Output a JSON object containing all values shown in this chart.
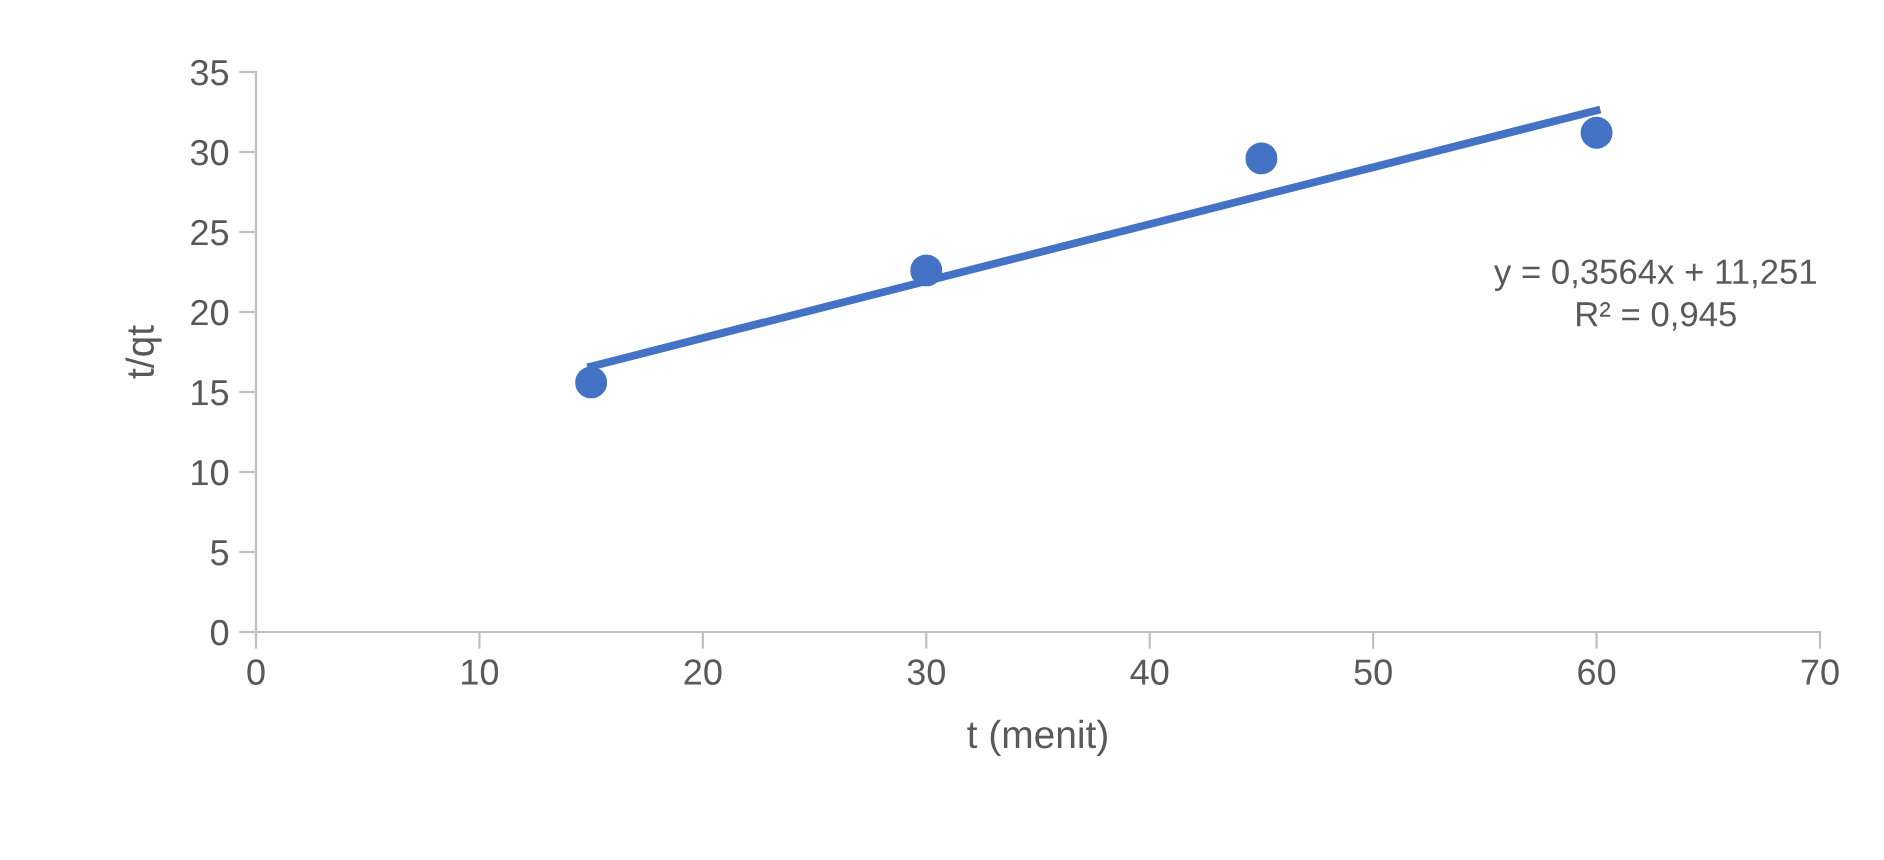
{
  "chart_data": {
    "type": "scatter",
    "xlabel": "t (menit)",
    "ylabel": "t/qt",
    "series": [
      {
        "color": "#4472c4",
        "x": [
          15,
          30,
          45,
          60
        ],
        "values": [
          15.6,
          22.6,
          29.6,
          31.2
        ],
        "marker": "circle"
      },
      {
        "type": "line",
        "color": "#4472c4",
        "x": [
          15,
          60
        ],
        "values": [
          16.6,
          32.6
        ],
        "line_style": "solid"
      }
    ],
    "annotations": [
      "y = 0,3564x + 11,251\nR² = 0,945"
    ],
    "xlim": [
      0,
      70
    ],
    "xticks": [
      0,
      10,
      20,
      30,
      40,
      50,
      60,
      70
    ],
    "ylim": [
      0,
      35
    ],
    "yticks": [
      0,
      5,
      10,
      15,
      20,
      25,
      30,
      35
    ],
    "grid": false,
    "legend": false
  }
}
